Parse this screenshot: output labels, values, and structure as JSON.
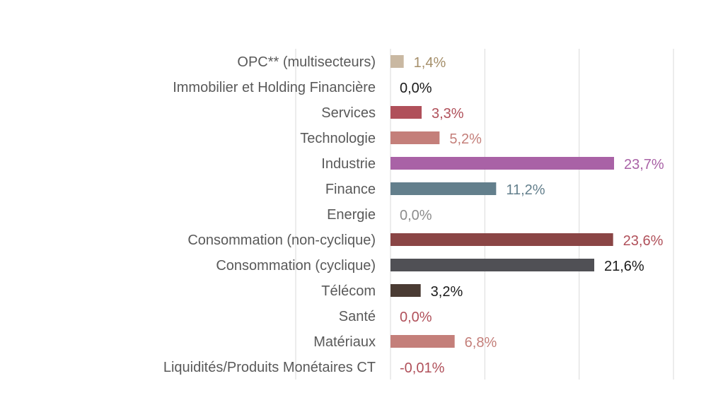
{
  "chart_data": {
    "type": "bar",
    "orientation": "horizontal",
    "title": "",
    "xlabel": "",
    "ylabel": "",
    "xlim": [
      0,
      30
    ],
    "grid": true,
    "legend": "none",
    "categories": [
      "OPC** (multisecteurs)",
      "Immobilier et Holding Financière",
      "Services",
      "Technologie",
      "Industrie",
      "Finance",
      "Energie",
      "Consommation (non-cyclique)",
      "Consommation (cyclique)",
      "Télécom",
      "Santé",
      "Matériaux",
      "Liquidités/Produits Monétaires CT"
    ],
    "values": [
      1.4,
      0.0,
      3.3,
      5.2,
      23.7,
      11.2,
      0.0,
      23.6,
      21.6,
      3.2,
      0.0,
      6.8,
      -0.01
    ],
    "data_labels": [
      "1,4%",
      "0,0%",
      "3,3%",
      "5,2%",
      "23,7%",
      "11,2%",
      "0,0%",
      "23,6%",
      "21,6%",
      "3,2%",
      "0,0%",
      "6,8%",
      "-0,01%"
    ],
    "bar_colors": [
      "#c9b8a2",
      "#000000",
      "#b0505a",
      "#c47f7a",
      "#a962a6",
      "#637f8c",
      "#8c8c8c",
      "#8a4545",
      "#505055",
      "#4a3b33",
      "#b0505a",
      "#c47f7a",
      "#b0505a"
    ],
    "label_colors": [
      "#a58f6a",
      "#1a1a1a",
      "#b0505a",
      "#c47f7a",
      "#a962a6",
      "#637f8c",
      "#8c8c8c",
      "#b0505a",
      "#1a1a1a",
      "#1a1a1a",
      "#b0505a",
      "#c47f7a",
      "#b0505a"
    ]
  }
}
